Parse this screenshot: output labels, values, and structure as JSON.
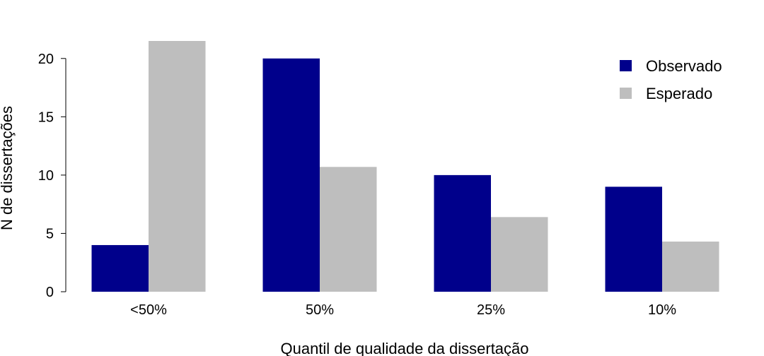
{
  "chart_data": {
    "type": "bar",
    "categories": [
      "<50%",
      "50%",
      "25%",
      "10%"
    ],
    "series": [
      {
        "name": "Observado",
        "values": [
          4,
          20,
          10,
          9
        ],
        "color": "#00008B"
      },
      {
        "name": "Esperado",
        "values": [
          21.5,
          10.7,
          6.4,
          4.3
        ],
        "color": "#BEBEBE"
      }
    ],
    "xlabel": "Quantil de qualidade da dissertação",
    "ylabel": "N de dissertações",
    "ylim": [
      0,
      21.5
    ],
    "yticks": [
      0,
      5,
      10,
      15,
      20
    ],
    "legend_position": "top-right",
    "grid": false
  }
}
